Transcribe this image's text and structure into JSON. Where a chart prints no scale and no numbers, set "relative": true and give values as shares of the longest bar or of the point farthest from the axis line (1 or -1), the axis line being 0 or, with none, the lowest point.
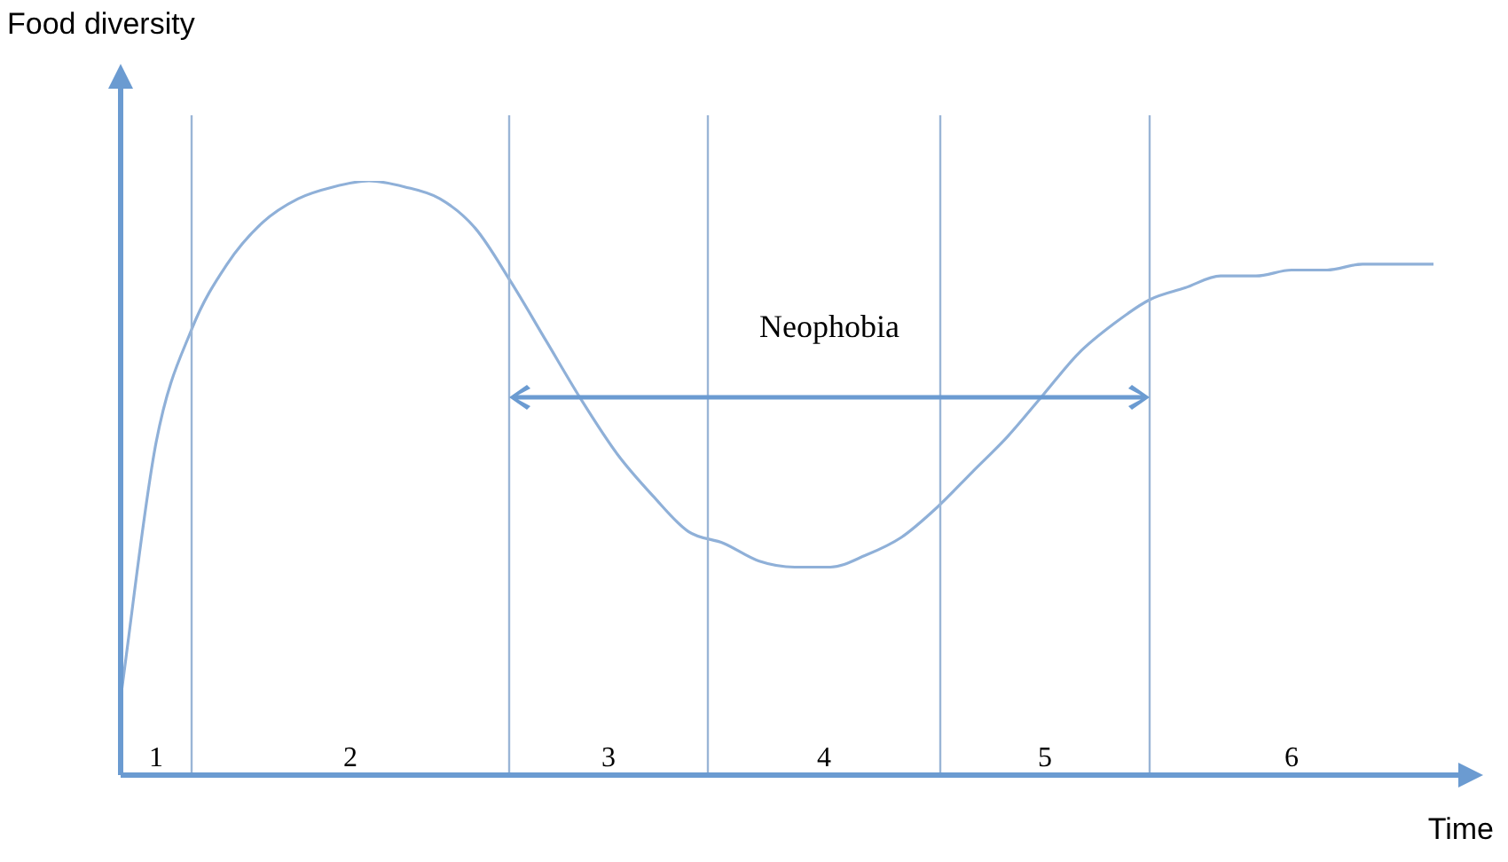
{
  "chart_data": {
    "type": "line",
    "relative": true,
    "xlabel": "Time",
    "ylabel": "Food diversity",
    "categories": [
      null,
      null,
      null,
      null,
      null,
      null,
      null,
      null,
      null,
      null,
      null,
      null,
      null,
      null,
      null,
      null,
      null,
      null,
      null,
      null,
      null,
      null,
      null,
      null,
      null,
      null,
      null,
      null,
      null,
      null,
      null,
      null,
      null,
      null,
      null,
      null,
      null,
      null
    ],
    "series": [
      {
        "color": "#8fb0d8",
        "values": [
          0.13,
          0.56,
          0.75,
          0.86,
          0.93,
          0.97,
          0.99,
          1,
          0.99,
          0.97,
          0.92,
          0.83,
          0.73,
          0.63,
          0.54,
          0.47,
          0.41,
          0.39,
          0.36,
          0.35,
          0.35,
          0.37,
          0.4,
          0.45,
          0.51,
          0.57,
          0.64,
          0.71,
          0.76,
          0.8,
          0.82,
          0.84,
          0.84,
          0.85,
          0.85,
          0.86,
          0.86,
          0.86
        ]
      }
    ],
    "annotations": [
      "1",
      "2",
      "3",
      "4",
      "5",
      "6",
      "Neophobia"
    ],
    "grid": "x",
    "legend": false,
    "marker": "none",
    "line_style": "solid"
  }
}
